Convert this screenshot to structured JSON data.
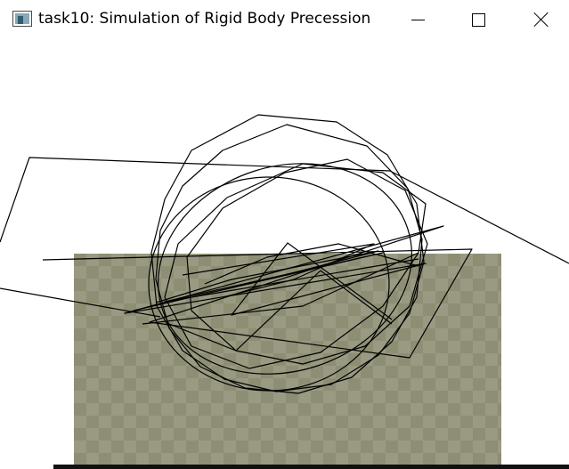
{
  "window": {
    "title": "task10: Simulation of Rigid Body Precession",
    "icon": "app-window-icon",
    "controls": {
      "minimize": "minimize-icon",
      "maximize": "maximize-icon",
      "close": "close-icon"
    }
  },
  "scene": {
    "floor_color": "#8e8e74",
    "line_color": "#000000",
    "background": "#ffffff"
  }
}
